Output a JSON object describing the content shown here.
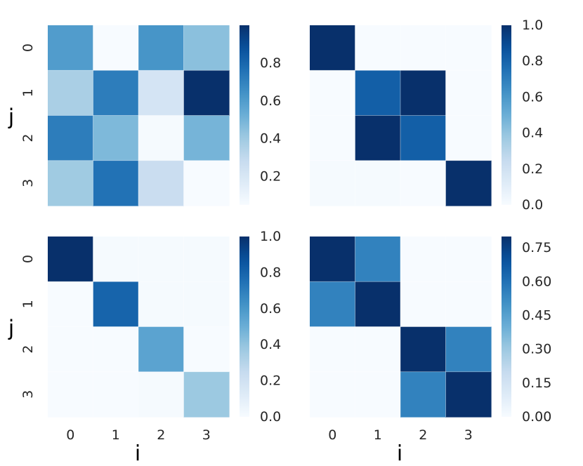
{
  "chart_data": [
    {
      "type": "heatmap",
      "panel": "top-left",
      "x_categories": [
        "0",
        "1",
        "2",
        "3"
      ],
      "y_categories": [
        "0",
        "1",
        "2",
        "3"
      ],
      "xlabel": "",
      "ylabel": "j",
      "colormap": "Blues",
      "vmin": 0.05,
      "vmax": 1.0,
      "colorbar_ticks": [
        "0.2",
        "0.4",
        "0.6",
        "0.8"
      ],
      "colorbar_tick_values": [
        0.2,
        0.4,
        0.6,
        0.8
      ],
      "values": [
        [
          0.6,
          0.05,
          0.63,
          0.45
        ],
        [
          0.37,
          0.72,
          0.22,
          1.0
        ],
        [
          0.72,
          0.48,
          0.06,
          0.5
        ],
        [
          0.4,
          0.76,
          0.27,
          0.05
        ]
      ]
    },
    {
      "type": "heatmap",
      "panel": "top-right",
      "x_categories": [
        "0",
        "1",
        "2",
        "3"
      ],
      "y_categories": [
        "0",
        "1",
        "2",
        "3"
      ],
      "xlabel": "",
      "ylabel": "",
      "colormap": "Blues",
      "vmin": 0.0,
      "vmax": 1.0,
      "colorbar_ticks": [
        "0.0",
        "0.2",
        "0.4",
        "0.6",
        "0.8",
        "1.0"
      ],
      "colorbar_tick_values": [
        0.0,
        0.2,
        0.4,
        0.6,
        0.8,
        1.0
      ],
      "values": [
        [
          1.0,
          0.0,
          0.0,
          0.0
        ],
        [
          0.0,
          0.82,
          1.0,
          0.0
        ],
        [
          0.0,
          1.0,
          0.82,
          0.0
        ],
        [
          0.01,
          0.01,
          0.0,
          1.0
        ]
      ]
    },
    {
      "type": "heatmap",
      "panel": "bottom-left",
      "x_categories": [
        "0",
        "1",
        "2",
        "3"
      ],
      "y_categories": [
        "0",
        "1",
        "2",
        "3"
      ],
      "xlabel": "i",
      "ylabel": "j",
      "colormap": "Blues",
      "vmin": 0.0,
      "vmax": 1.0,
      "colorbar_ticks": [
        "0.0",
        "0.2",
        "0.4",
        "0.6",
        "0.8",
        "1.0"
      ],
      "colorbar_tick_values": [
        0.0,
        0.2,
        0.4,
        0.6,
        0.8,
        1.0
      ],
      "values": [
        [
          1.0,
          0.01,
          0.01,
          0.01
        ],
        [
          0.0,
          0.8,
          0.01,
          0.01
        ],
        [
          0.0,
          0.0,
          0.55,
          0.0
        ],
        [
          0.0,
          0.0,
          0.01,
          0.38
        ]
      ]
    },
    {
      "type": "heatmap",
      "panel": "bottom-right",
      "x_categories": [
        "0",
        "1",
        "2",
        "3"
      ],
      "y_categories": [
        "0",
        "1",
        "2",
        "3"
      ],
      "xlabel": "i",
      "ylabel": "",
      "colormap": "Blues",
      "vmin": 0.0,
      "vmax": 0.8,
      "colorbar_ticks": [
        "0.00",
        "0.15",
        "0.30",
        "0.45",
        "0.60",
        "0.75"
      ],
      "colorbar_tick_values": [
        0.0,
        0.15,
        0.3,
        0.45,
        0.6,
        0.75
      ],
      "values": [
        [
          0.8,
          0.55,
          0.0,
          0.0
        ],
        [
          0.55,
          0.8,
          0.0,
          0.0
        ],
        [
          0.0,
          0.0,
          0.8,
          0.55
        ],
        [
          0.0,
          0.0,
          0.55,
          0.8
        ]
      ]
    }
  ]
}
